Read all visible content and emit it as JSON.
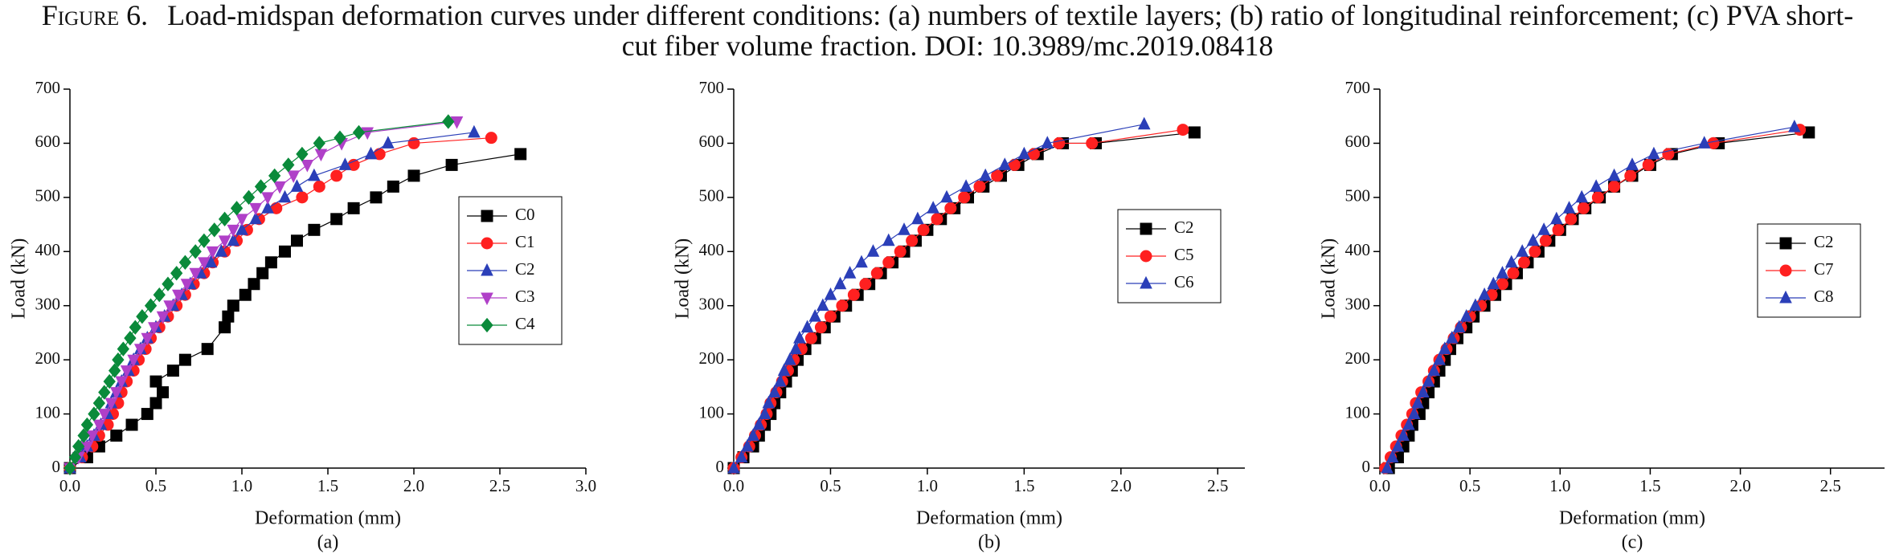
{
  "caption_label": "Figure 6.",
  "caption": "Load-midspan deformation curves under different conditions: (a) numbers of textile layers; (b) ratio of longitudinal reinforcement; (c) PVA short-cut fiber volume fraction. DOI: 10.3989/mc.2019.08418",
  "chart_data": [
    {
      "type": "line",
      "sublabel": "(a)",
      "xlabel": "Deformation (mm)",
      "ylabel": "Load (kN)",
      "xlim": [
        0,
        3
      ],
      "xticks": [
        {
          "value": 0,
          "label": "0.0"
        },
        0.5,
        {
          "value": 1,
          "label": "1.0"
        },
        1.5,
        {
          "value": 2,
          "label": "2.0"
        },
        2.5,
        {
          "value": 3,
          "label": "3.0"
        }
      ],
      "ylim": [
        0,
        700
      ],
      "yticks": [
        0,
        100,
        200,
        300,
        400,
        500,
        600,
        700
      ],
      "legend": "center right",
      "series": [
        {
          "name": "C0",
          "color": "#000000",
          "marker": "square",
          "x": [
            0,
            0.1,
            0.17,
            0.27,
            0.36,
            0.45,
            0.5,
            0.54,
            0.5,
            0.6,
            0.67,
            0.8,
            0.9,
            0.92,
            0.95,
            1.02,
            1.07,
            1.12,
            1.17,
            1.25,
            1.32,
            1.42,
            1.55,
            1.65,
            1.78,
            1.88,
            2.0,
            2.22,
            2.62
          ],
          "values": [
            0,
            20,
            40,
            60,
            80,
            100,
            120,
            140,
            160,
            180,
            200,
            220,
            260,
            280,
            300,
            320,
            340,
            360,
            380,
            400,
            420,
            440,
            460,
            480,
            500,
            520,
            540,
            560,
            580
          ]
        },
        {
          "name": "C1",
          "color": "#ff2020",
          "marker": "circle",
          "x": [
            0,
            0.07,
            0.13,
            0.17,
            0.22,
            0.25,
            0.28,
            0.3,
            0.33,
            0.37,
            0.4,
            0.44,
            0.47,
            0.52,
            0.57,
            0.62,
            0.67,
            0.72,
            0.78,
            0.83,
            0.9,
            0.97,
            1.03,
            1.1,
            1.2,
            1.35,
            1.45,
            1.55,
            1.65,
            1.8,
            2.0,
            2.45
          ],
          "values": [
            0,
            20,
            40,
            60,
            80,
            100,
            120,
            140,
            160,
            180,
            200,
            220,
            240,
            260,
            280,
            300,
            320,
            340,
            360,
            380,
            400,
            420,
            440,
            460,
            480,
            500,
            520,
            540,
            560,
            580,
            600,
            610
          ]
        },
        {
          "name": "C2",
          "color": "#2b3fb8",
          "marker": "triangle-up",
          "x": [
            0,
            0.06,
            0.1,
            0.14,
            0.18,
            0.22,
            0.24,
            0.27,
            0.3,
            0.34,
            0.37,
            0.41,
            0.45,
            0.5,
            0.55,
            0.6,
            0.65,
            0.7,
            0.76,
            0.82,
            0.88,
            0.95,
            1.0,
            1.08,
            1.15,
            1.25,
            1.32,
            1.42,
            1.6,
            1.75,
            1.85,
            2.35
          ],
          "values": [
            0,
            20,
            40,
            60,
            80,
            100,
            120,
            140,
            160,
            180,
            200,
            220,
            240,
            260,
            280,
            300,
            320,
            340,
            360,
            380,
            400,
            420,
            440,
            460,
            480,
            500,
            520,
            540,
            560,
            580,
            600,
            620
          ]
        },
        {
          "name": "C3",
          "color": "#b040c8",
          "marker": "triangle-down",
          "x": [
            0,
            0.05,
            0.1,
            0.13,
            0.17,
            0.2,
            0.24,
            0.27,
            0.3,
            0.33,
            0.37,
            0.41,
            0.45,
            0.49,
            0.54,
            0.58,
            0.63,
            0.68,
            0.73,
            0.78,
            0.83,
            0.9,
            0.95,
            1.0,
            1.08,
            1.15,
            1.22,
            1.3,
            1.38,
            1.46,
            1.58,
            1.73,
            2.25
          ],
          "values": [
            0,
            20,
            40,
            60,
            80,
            100,
            120,
            140,
            160,
            180,
            200,
            220,
            240,
            260,
            280,
            300,
            320,
            340,
            360,
            380,
            400,
            420,
            440,
            460,
            480,
            500,
            520,
            540,
            560,
            580,
            600,
            620,
            640
          ]
        },
        {
          "name": "C4",
          "color": "#0a8a3a",
          "marker": "diamond",
          "x": [
            0,
            0.03,
            0.05,
            0.08,
            0.1,
            0.14,
            0.17,
            0.2,
            0.23,
            0.26,
            0.28,
            0.31,
            0.35,
            0.38,
            0.42,
            0.47,
            0.52,
            0.57,
            0.62,
            0.67,
            0.73,
            0.78,
            0.84,
            0.9,
            0.97,
            1.04,
            1.11,
            1.19,
            1.27,
            1.35,
            1.45,
            1.57,
            1.68,
            2.2
          ],
          "values": [
            0,
            20,
            40,
            60,
            80,
            100,
            120,
            140,
            160,
            180,
            200,
            220,
            240,
            260,
            280,
            300,
            320,
            340,
            360,
            380,
            400,
            420,
            440,
            460,
            480,
            500,
            520,
            540,
            560,
            580,
            600,
            610,
            620,
            640
          ]
        }
      ]
    },
    {
      "type": "line",
      "sublabel": "(b)",
      "xlabel": "Deformation (mm)",
      "ylabel": "Load (kN)",
      "xlim": [
        0,
        2.64
      ],
      "xticks": [
        {
          "value": 0,
          "label": "0.0"
        },
        0.5,
        {
          "value": 1,
          "label": "1.0"
        },
        1.5,
        {
          "value": 2,
          "label": "2.0"
        },
        2.5
      ],
      "ylim": [
        0,
        700
      ],
      "yticks": [
        0,
        100,
        200,
        300,
        400,
        500,
        600,
        700
      ],
      "legend": "upper right",
      "series": [
        {
          "name": "C2",
          "color": "#000000",
          "marker": "square",
          "x": [
            0,
            0.05,
            0.1,
            0.13,
            0.16,
            0.19,
            0.21,
            0.24,
            0.27,
            0.3,
            0.33,
            0.37,
            0.42,
            0.47,
            0.52,
            0.58,
            0.64,
            0.7,
            0.76,
            0.82,
            0.88,
            0.94,
            1.0,
            1.07,
            1.14,
            1.21,
            1.29,
            1.38,
            1.47,
            1.57,
            1.7,
            1.87,
            2.38
          ],
          "values": [
            0,
            20,
            40,
            60,
            80,
            100,
            120,
            140,
            160,
            180,
            200,
            220,
            240,
            260,
            280,
            300,
            320,
            340,
            360,
            380,
            400,
            420,
            440,
            460,
            480,
            500,
            520,
            540,
            560,
            580,
            600,
            600,
            620
          ]
        },
        {
          "name": "C5",
          "color": "#ff2020",
          "marker": "circle",
          "x": [
            0,
            0.04,
            0.08,
            0.11,
            0.14,
            0.17,
            0.19,
            0.22,
            0.25,
            0.28,
            0.31,
            0.35,
            0.4,
            0.45,
            0.5,
            0.56,
            0.62,
            0.68,
            0.74,
            0.8,
            0.86,
            0.92,
            0.98,
            1.05,
            1.12,
            1.19,
            1.27,
            1.36,
            1.45,
            1.55,
            1.68,
            1.85,
            2.32
          ],
          "values": [
            0,
            20,
            40,
            60,
            80,
            100,
            120,
            140,
            160,
            180,
            200,
            220,
            240,
            260,
            280,
            300,
            320,
            340,
            360,
            380,
            400,
            420,
            440,
            460,
            480,
            500,
            520,
            540,
            560,
            580,
            600,
            600,
            625
          ]
        },
        {
          "name": "C6",
          "color": "#2b3fb8",
          "marker": "triangle-up",
          "x": [
            0,
            0.04,
            0.07,
            0.1,
            0.13,
            0.16,
            0.18,
            0.21,
            0.24,
            0.26,
            0.29,
            0.32,
            0.34,
            0.38,
            0.42,
            0.46,
            0.5,
            0.55,
            0.6,
            0.66,
            0.72,
            0.8,
            0.88,
            0.95,
            1.03,
            1.1,
            1.2,
            1.3,
            1.4,
            1.5,
            1.62,
            2.12
          ],
          "values": [
            0,
            20,
            40,
            60,
            80,
            100,
            120,
            140,
            160,
            180,
            200,
            220,
            240,
            260,
            280,
            300,
            320,
            340,
            360,
            380,
            400,
            420,
            440,
            460,
            480,
            500,
            520,
            540,
            560,
            580,
            600,
            635
          ]
        }
      ]
    },
    {
      "type": "line",
      "sublabel": "(c)",
      "xlabel": "Deformation (mm)",
      "ylabel": "Load (kN)",
      "xlim": [
        0,
        2.8
      ],
      "xticks": [
        {
          "value": 0,
          "label": "0.0"
        },
        0.5,
        {
          "value": 1,
          "label": "1.0"
        },
        1.5,
        {
          "value": 2,
          "label": "2.0"
        },
        2.5
      ],
      "ylim": [
        0,
        700
      ],
      "yticks": [
        0,
        100,
        200,
        300,
        400,
        500,
        600,
        700
      ],
      "legend": "center right",
      "series": [
        {
          "name": "C2",
          "color": "#000000",
          "marker": "square",
          "x": [
            0.05,
            0.1,
            0.13,
            0.16,
            0.18,
            0.22,
            0.24,
            0.27,
            0.3,
            0.33,
            0.36,
            0.39,
            0.43,
            0.48,
            0.52,
            0.58,
            0.64,
            0.7,
            0.76,
            0.82,
            0.88,
            0.94,
            1.0,
            1.07,
            1.14,
            1.22,
            1.3,
            1.4,
            1.5,
            1.62,
            1.88,
            2.38
          ],
          "values": [
            0,
            20,
            40,
            60,
            80,
            100,
            120,
            140,
            160,
            180,
            200,
            220,
            240,
            260,
            280,
            300,
            320,
            340,
            360,
            380,
            400,
            420,
            440,
            460,
            480,
            500,
            520,
            540,
            560,
            580,
            600,
            620
          ]
        },
        {
          "name": "C7",
          "color": "#ff2020",
          "marker": "circle",
          "x": [
            0.03,
            0.06,
            0.09,
            0.12,
            0.15,
            0.18,
            0.2,
            0.23,
            0.27,
            0.3,
            0.33,
            0.37,
            0.41,
            0.45,
            0.5,
            0.56,
            0.62,
            0.68,
            0.74,
            0.8,
            0.86,
            0.92,
            0.99,
            1.06,
            1.13,
            1.21,
            1.3,
            1.39,
            1.49,
            1.6,
            1.85,
            2.33
          ],
          "values": [
            0,
            20,
            40,
            60,
            80,
            100,
            120,
            140,
            160,
            180,
            200,
            220,
            240,
            260,
            280,
            300,
            320,
            340,
            360,
            380,
            400,
            420,
            440,
            460,
            480,
            500,
            520,
            540,
            560,
            580,
            600,
            625
          ]
        },
        {
          "name": "C8",
          "color": "#2b3fb8",
          "marker": "triangle-up",
          "x": [
            0.04,
            0.07,
            0.1,
            0.13,
            0.16,
            0.19,
            0.21,
            0.24,
            0.27,
            0.3,
            0.33,
            0.36,
            0.4,
            0.44,
            0.48,
            0.53,
            0.58,
            0.63,
            0.68,
            0.73,
            0.79,
            0.85,
            0.91,
            0.98,
            1.05,
            1.12,
            1.2,
            1.3,
            1.4,
            1.52,
            1.8,
            2.3
          ],
          "values": [
            0,
            20,
            40,
            60,
            80,
            100,
            120,
            140,
            160,
            180,
            200,
            220,
            240,
            260,
            280,
            300,
            320,
            340,
            360,
            380,
            400,
            420,
            440,
            460,
            480,
            500,
            520,
            540,
            560,
            580,
            600,
            630
          ]
        }
      ]
    }
  ]
}
